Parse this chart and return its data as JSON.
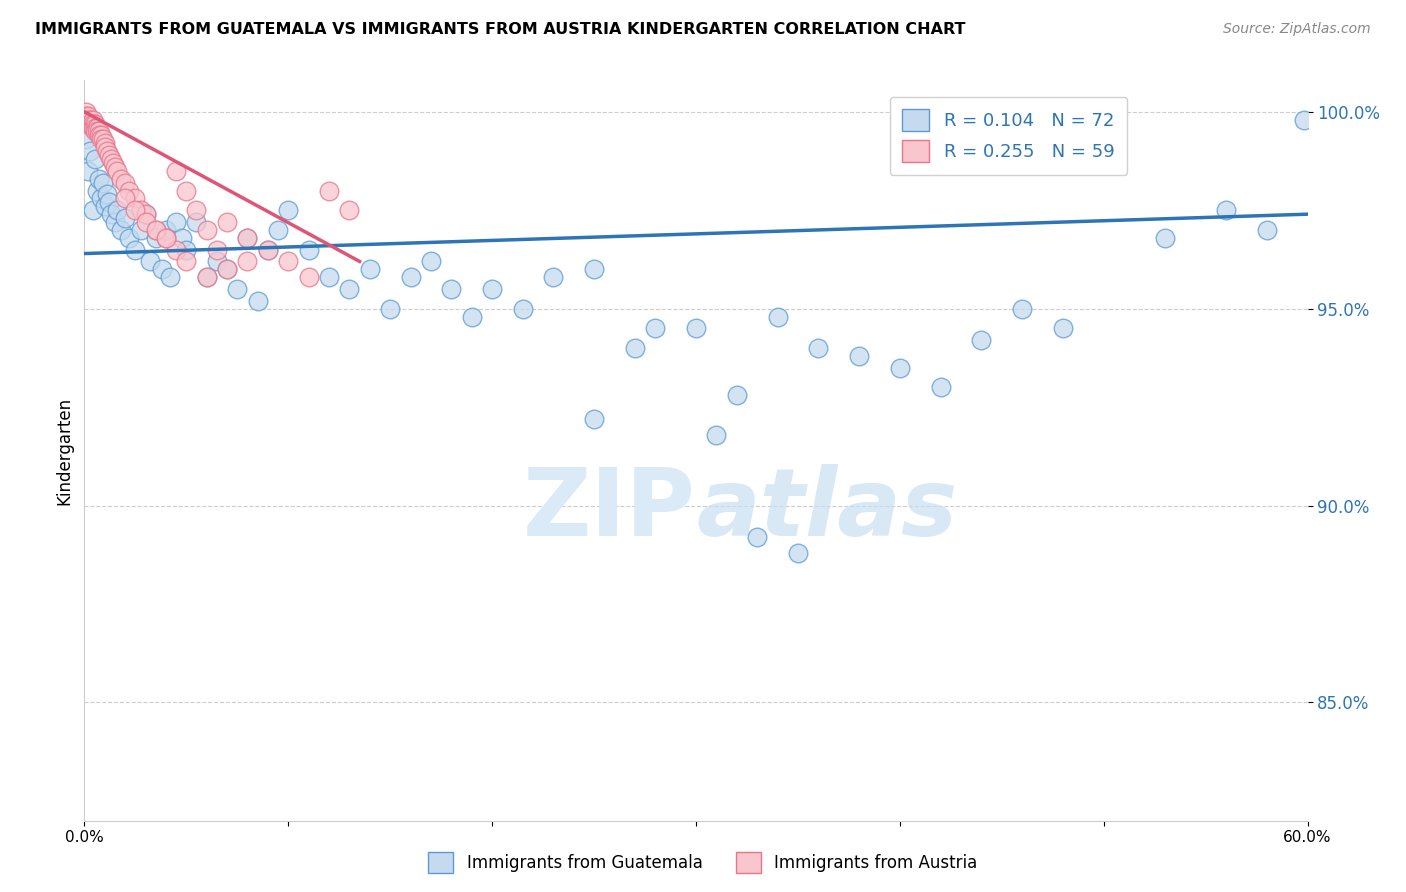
{
  "title": "IMMIGRANTS FROM GUATEMALA VS IMMIGRANTS FROM AUSTRIA KINDERGARTEN CORRELATION CHART",
  "source": "Source: ZipAtlas.com",
  "ylabel": "Kindergarten",
  "xlim": [
    0.0,
    0.6
  ],
  "ylim": [
    0.82,
    1.008
  ],
  "x_ticks": [
    0.0,
    0.1,
    0.2,
    0.3,
    0.4,
    0.5,
    0.6
  ],
  "x_tick_labels": [
    "0.0%",
    "",
    "",
    "",
    "",
    "",
    "60.0%"
  ],
  "y_ticks": [
    0.85,
    0.9,
    0.95,
    1.0
  ],
  "y_tick_labels": [
    "85.0%",
    "90.0%",
    "95.0%",
    "100.0%"
  ],
  "legend_r_blue": "R = 0.104",
  "legend_n_blue": "N = 72",
  "legend_r_pink": "R = 0.255",
  "legend_n_pink": "N = 59",
  "blue_fill": "#c5daee",
  "blue_edge": "#5b9bd5",
  "pink_fill": "#f9c6ce",
  "pink_edge": "#e8748a",
  "blue_line_color": "#2e75b6",
  "pink_line_color": "#e05575",
  "watermark_color": "#daeaf6",
  "blue_scatter_x": [
    0.001,
    0.002,
    0.003,
    0.004,
    0.005,
    0.006,
    0.007,
    0.008,
    0.009,
    0.01,
    0.011,
    0.012,
    0.013,
    0.015,
    0.016,
    0.018,
    0.02,
    0.022,
    0.025,
    0.028,
    0.03,
    0.032,
    0.035,
    0.038,
    0.04,
    0.042,
    0.045,
    0.048,
    0.05,
    0.055,
    0.06,
    0.065,
    0.07,
    0.075,
    0.08,
    0.085,
    0.09,
    0.095,
    0.1,
    0.11,
    0.12,
    0.13,
    0.14,
    0.15,
    0.16,
    0.17,
    0.18,
    0.19,
    0.2,
    0.215,
    0.23,
    0.25,
    0.27,
    0.28,
    0.3,
    0.32,
    0.34,
    0.36,
    0.38,
    0.4,
    0.42,
    0.44,
    0.46,
    0.48,
    0.53,
    0.56,
    0.58,
    0.598,
    0.25,
    0.31,
    0.33,
    0.35
  ],
  "blue_scatter_y": [
    0.993,
    0.985,
    0.99,
    0.975,
    0.988,
    0.98,
    0.983,
    0.978,
    0.982,
    0.976,
    0.979,
    0.977,
    0.974,
    0.972,
    0.975,
    0.97,
    0.973,
    0.968,
    0.965,
    0.97,
    0.974,
    0.962,
    0.968,
    0.96,
    0.97,
    0.958,
    0.972,
    0.968,
    0.965,
    0.972,
    0.958,
    0.962,
    0.96,
    0.955,
    0.968,
    0.952,
    0.965,
    0.97,
    0.975,
    0.965,
    0.958,
    0.955,
    0.96,
    0.95,
    0.958,
    0.962,
    0.955,
    0.948,
    0.955,
    0.95,
    0.958,
    0.96,
    0.94,
    0.945,
    0.945,
    0.928,
    0.948,
    0.94,
    0.938,
    0.935,
    0.93,
    0.942,
    0.95,
    0.945,
    0.968,
    0.975,
    0.97,
    0.998,
    0.922,
    0.918,
    0.892,
    0.888
  ],
  "pink_scatter_x": [
    0.001,
    0.001,
    0.001,
    0.002,
    0.002,
    0.002,
    0.003,
    0.003,
    0.004,
    0.004,
    0.004,
    0.005,
    0.005,
    0.005,
    0.006,
    0.006,
    0.007,
    0.007,
    0.008,
    0.008,
    0.009,
    0.01,
    0.01,
    0.011,
    0.012,
    0.013,
    0.014,
    0.015,
    0.016,
    0.018,
    0.02,
    0.022,
    0.025,
    0.028,
    0.03,
    0.035,
    0.04,
    0.045,
    0.05,
    0.06,
    0.07,
    0.08,
    0.09,
    0.1,
    0.11,
    0.12,
    0.13,
    0.02,
    0.025,
    0.03,
    0.035,
    0.04,
    0.045,
    0.05,
    0.055,
    0.06,
    0.065,
    0.07,
    0.08
  ],
  "pink_scatter_y": [
    1.0,
    0.999,
    0.998,
    0.999,
    0.998,
    0.997,
    0.998,
    0.997,
    0.998,
    0.997,
    0.996,
    0.997,
    0.996,
    0.995,
    0.996,
    0.995,
    0.995,
    0.994,
    0.994,
    0.993,
    0.993,
    0.992,
    0.991,
    0.99,
    0.989,
    0.988,
    0.987,
    0.986,
    0.985,
    0.983,
    0.982,
    0.98,
    0.978,
    0.975,
    0.974,
    0.97,
    0.968,
    0.965,
    0.962,
    0.958,
    0.972,
    0.968,
    0.965,
    0.962,
    0.958,
    0.98,
    0.975,
    0.978,
    0.975,
    0.972,
    0.97,
    0.968,
    0.985,
    0.98,
    0.975,
    0.97,
    0.965,
    0.96,
    0.962
  ],
  "blue_trendline_x": [
    0.0,
    0.6
  ],
  "blue_trendline_y": [
    0.964,
    0.974
  ],
  "pink_trendline_x": [
    0.0,
    0.135
  ],
  "pink_trendline_y": [
    1.0,
    0.962
  ]
}
